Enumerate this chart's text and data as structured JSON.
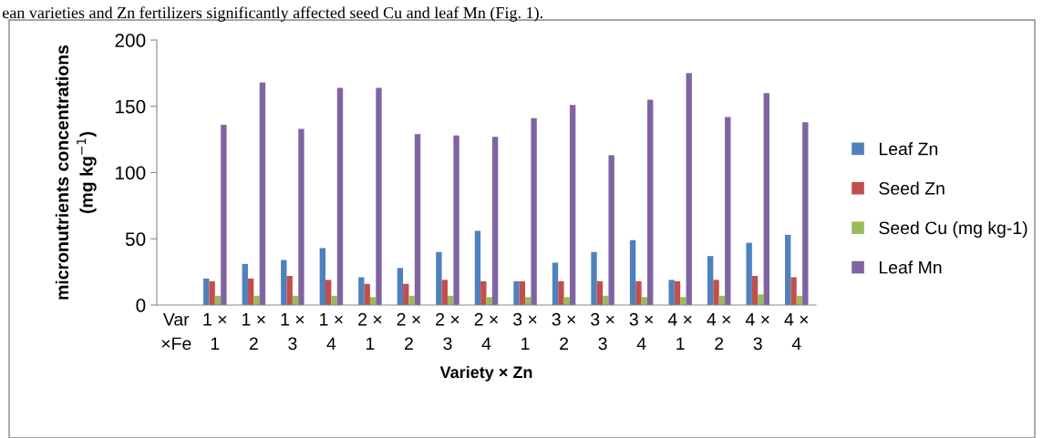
{
  "chart_data": {
    "type": "bar",
    "xlabel": "Variety × Zn",
    "ylabel": "micronutrients concentrations (mg kg$^{−1}$)",
    "annotations": [
      "ean varieties and Zn fertilizers significantly affected seed Cu and leaf Mn (Fig. 1)."
    ],
    "categories": [
      "Var ×Fe",
      "1 × 1",
      "1 × 2",
      "1 × 3",
      "1 × 4",
      "2 × 1",
      "2 × 2",
      "2 × 3",
      "2 × 4",
      "3 × 1",
      "3 × 2",
      "3 × 3",
      "3 × 4",
      "4 × 1",
      "4 × 2",
      "4 × 3",
      "4 × 4"
    ],
    "series": [
      {
        "name": "Leaf Zn",
        "color": "#4f81bd",
        "values": [
          null,
          20,
          31,
          34,
          43,
          21,
          28,
          40,
          56,
          18,
          32,
          40,
          49,
          19,
          37,
          47,
          53
        ]
      },
      {
        "name": "Seed Zn",
        "color": "#c0504d",
        "values": [
          null,
          18,
          20,
          22,
          19,
          16,
          16,
          19,
          18,
          18,
          18,
          18,
          18,
          18,
          19,
          22,
          21
        ]
      },
      {
        "name": "Seed Cu (mg kg-1)",
        "color": "#9bbb59",
        "values": [
          null,
          7,
          7,
          7,
          7,
          6,
          7,
          7,
          6,
          6,
          6,
          7,
          6,
          6,
          7,
          8,
          7
        ]
      },
      {
        "name": "Leaf Mn",
        "color": "#8064a2",
        "values": [
          null,
          136,
          168,
          133,
          164,
          164,
          129,
          128,
          127,
          141,
          151,
          113,
          155,
          175,
          142,
          160,
          138
        ]
      }
    ],
    "ylim": [
      0,
      200
    ],
    "yticks": [
      0,
      50,
      100,
      150,
      200
    ],
    "grid": false,
    "legend": "right"
  }
}
